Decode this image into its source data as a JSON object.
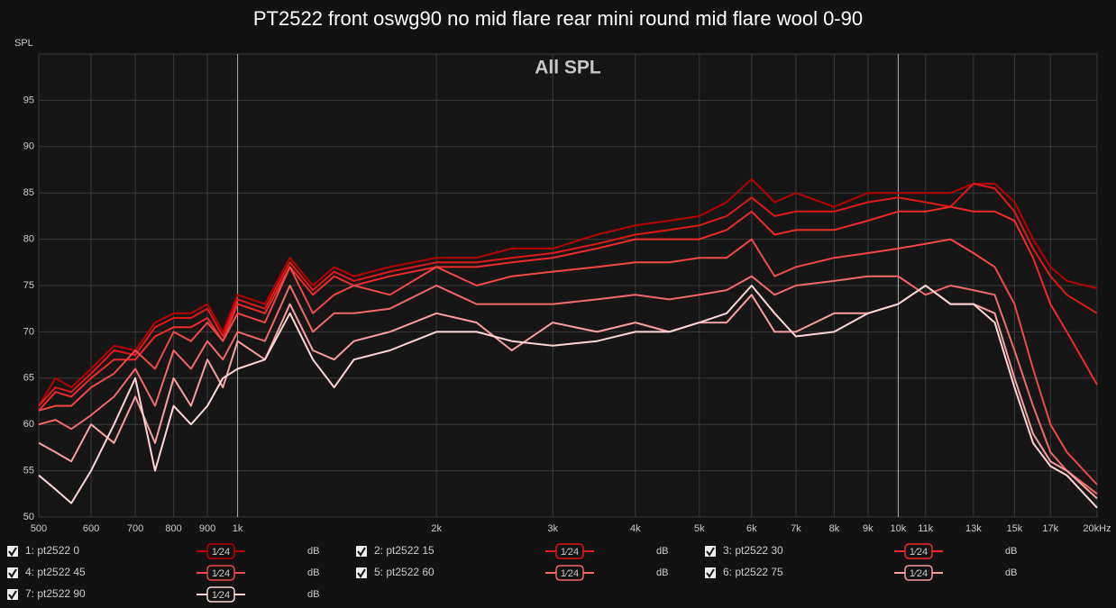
{
  "chart_data": {
    "type": "line",
    "title": "PT2522 front oswg90 no mid flare rear mini round mid flare wool 0-90",
    "annotation": "All SPL",
    "ylabel": "SPL",
    "log_x": true,
    "grid": true,
    "xlim": [
      500,
      20000
    ],
    "ylim": [
      50,
      100
    ],
    "yticks": [
      50,
      55,
      60,
      65,
      70,
      75,
      80,
      85,
      90,
      95
    ],
    "xticks": [
      500,
      600,
      700,
      800,
      900,
      {
        "value": 1000,
        "label": "1k"
      },
      {
        "value": 2000,
        "label": "2k"
      },
      {
        "value": 3000,
        "label": "3k"
      },
      {
        "value": 4000,
        "label": "4k"
      },
      {
        "value": 5000,
        "label": "5k"
      },
      {
        "value": 6000,
        "label": "6k"
      },
      {
        "value": 7000,
        "label": "7k"
      },
      {
        "value": 8000,
        "label": "8k"
      },
      {
        "value": 9000,
        "label": "9k"
      },
      {
        "value": 10000,
        "label": "10k"
      },
      {
        "value": 11000,
        "label": "11k"
      },
      {
        "value": 13000,
        "label": "13k"
      },
      {
        "value": 15000,
        "label": "15k"
      },
      {
        "value": 17000,
        "label": "17k"
      },
      {
        "value": 20000,
        "label": "20kHz"
      }
    ],
    "x": [
      500,
      530,
      560,
      600,
      650,
      700,
      750,
      800,
      850,
      900,
      950,
      1000,
      1100,
      1200,
      1300,
      1400,
      1500,
      1700,
      2000,
      2300,
      2600,
      3000,
      3500,
      4000,
      4500,
      5000,
      5500,
      6000,
      6500,
      7000,
      8000,
      9000,
      10000,
      11000,
      12000,
      13000,
      14000,
      15000,
      16000,
      17000,
      18000,
      20000
    ],
    "series": [
      {
        "name": "1: pt2522 0",
        "color": "#b80000",
        "smoothing": "1⁄24",
        "unit": "dB",
        "values": [
          62,
          65,
          64,
          66,
          68.5,
          68,
          71,
          72,
          72,
          73,
          70,
          74,
          73,
          78,
          75,
          77,
          76,
          77,
          78,
          78,
          79,
          79,
          80.5,
          81.5,
          82,
          82.5,
          84,
          86.5,
          84,
          85,
          83.5,
          85,
          85,
          85,
          85,
          86,
          86,
          84,
          80,
          77,
          75.5,
          74.7
        ]
      },
      {
        "name": "2: pt2522 15",
        "color": "#e01818",
        "smoothing": "1⁄24",
        "unit": "dB",
        "values": [
          62,
          64,
          63.5,
          65.5,
          68,
          67.5,
          70.5,
          71.5,
          71.5,
          72.5,
          69.5,
          73.5,
          72.5,
          77.5,
          74.5,
          76.5,
          75.5,
          76.5,
          77.5,
          77.5,
          78,
          78.5,
          79.5,
          80.5,
          81,
          81.5,
          82.5,
          84.5,
          82.5,
          83,
          83,
          84,
          84.5,
          84,
          83.5,
          86,
          85.5,
          83,
          79,
          76,
          74,
          72
        ]
      },
      {
        "name": "3: pt2522 30",
        "color": "#f02a2a",
        "smoothing": "1⁄24",
        "unit": "dB",
        "values": [
          61.5,
          63.5,
          63,
          65,
          67,
          67,
          69.5,
          70.5,
          70.5,
          71.5,
          69,
          73,
          72,
          77,
          74,
          76,
          75,
          76,
          77,
          77,
          77.5,
          78,
          79,
          80,
          80,
          80,
          81,
          83,
          80.5,
          81,
          81,
          82,
          83,
          83,
          83.5,
          83,
          83,
          82,
          78,
          73,
          70,
          64.3
        ]
      },
      {
        "name": "4: pt2522 45",
        "color": "#f04848",
        "smoothing": "1⁄24",
        "unit": "dB",
        "values": [
          61.5,
          62,
          62,
          64,
          65.5,
          68,
          66,
          70,
          69,
          71,
          69,
          72,
          71,
          77,
          72,
          74,
          75,
          74,
          77,
          75,
          76,
          76.5,
          77,
          77.5,
          77.5,
          78,
          78,
          80,
          76,
          77,
          78,
          78.5,
          79,
          79.5,
          80,
          78.5,
          77,
          73,
          66,
          60,
          57,
          53.5
        ]
      },
      {
        "name": "5: pt2522 60",
        "color": "#f06a6a",
        "smoothing": "1⁄24",
        "unit": "dB",
        "values": [
          60,
          60.5,
          59.5,
          61,
          63,
          66,
          62,
          68,
          66,
          69,
          67,
          70,
          69,
          75,
          70,
          72,
          72,
          72.5,
          75,
          73,
          73,
          73,
          73.5,
          74,
          73.5,
          74,
          74.5,
          76,
          74,
          75,
          75.5,
          76,
          76,
          74,
          75,
          74.5,
          74,
          68,
          62,
          57,
          55,
          52.5
        ]
      },
      {
        "name": "6: pt2522 75",
        "color": "#f8a0a0",
        "smoothing": "1⁄24",
        "unit": "dB",
        "values": [
          58,
          57,
          56,
          60,
          58,
          63,
          58,
          65,
          62,
          67,
          64,
          69,
          67,
          73,
          68,
          67,
          69,
          70,
          72,
          71,
          68,
          71,
          70,
          71,
          70,
          71,
          71,
          74,
          70,
          70,
          72,
          72,
          73,
          75,
          73,
          73,
          72,
          65,
          59,
          56,
          55,
          52
        ]
      },
      {
        "name": "7: pt2522 90",
        "color": "#ffd6d6",
        "smoothing": "1⁄24",
        "unit": "dB",
        "values": [
          54.5,
          53,
          51.5,
          55,
          60,
          65,
          55,
          62,
          60,
          62,
          65,
          66,
          67,
          72,
          67,
          64,
          67,
          68,
          70,
          70,
          69,
          68.5,
          69,
          70,
          70,
          71,
          72,
          75,
          72,
          69.5,
          70,
          72,
          73,
          75,
          73,
          73,
          71,
          64,
          58,
          55.5,
          54.5,
          51
        ]
      }
    ]
  }
}
